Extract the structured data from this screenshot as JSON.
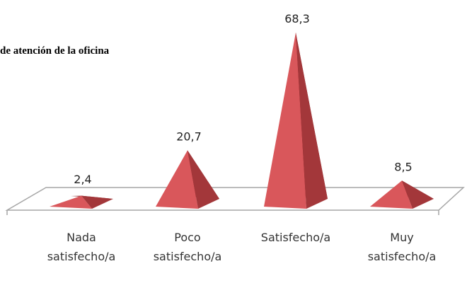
{
  "chart_data": {
    "type": "bar",
    "title": "de atención de la oficina",
    "categories": [
      "Nada satisfecho/a",
      "Poco satisfecho/a",
      "Satisfecho/a",
      "Muy satisfecho/a"
    ],
    "values": [
      2.4,
      20.7,
      68.3,
      8.5
    ],
    "value_labels": [
      "2,4",
      "20,7",
      "68,3",
      "8,5"
    ],
    "color": "#d9575b",
    "ylim": [
      0,
      70
    ]
  }
}
